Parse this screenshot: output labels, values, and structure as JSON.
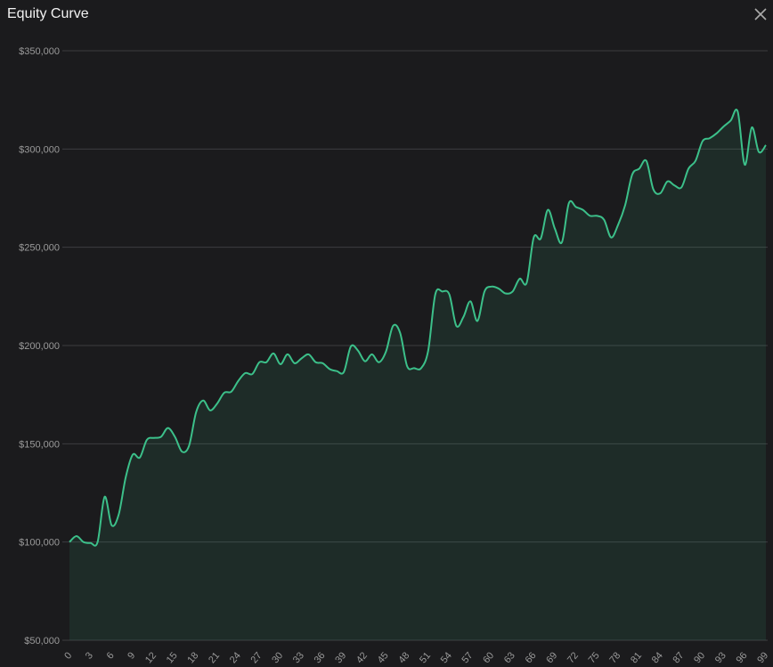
{
  "chart_data": {
    "type": "area",
    "title": "Equity Curve",
    "x": [
      0,
      1,
      2,
      3,
      4,
      5,
      6,
      7,
      8,
      9,
      10,
      11,
      12,
      13,
      14,
      15,
      16,
      17,
      18,
      19,
      20,
      21,
      22,
      23,
      24,
      25,
      26,
      27,
      28,
      29,
      30,
      31,
      32,
      33,
      34,
      35,
      36,
      37,
      38,
      39,
      40,
      41,
      42,
      43,
      44,
      45,
      46,
      47,
      48,
      49,
      50,
      51,
      52,
      53,
      54,
      55,
      56,
      57,
      58,
      59,
      60,
      61,
      62,
      63,
      64,
      65,
      66,
      67,
      68,
      69,
      70,
      71,
      72,
      73,
      74,
      75,
      76,
      77,
      78,
      79,
      80,
      81,
      82,
      83,
      84,
      85,
      86,
      87,
      88,
      89,
      90,
      91,
      92,
      93,
      94,
      95,
      96,
      97,
      98,
      99
    ],
    "values": [
      100000,
      103000,
      100000,
      99500,
      100000,
      123000,
      108500,
      114000,
      133000,
      144500,
      143000,
      152000,
      153000,
      153500,
      158000,
      153500,
      146000,
      149000,
      166000,
      172000,
      167000,
      170500,
      176000,
      176500,
      182000,
      186000,
      185500,
      191500,
      191500,
      196000,
      190500,
      195500,
      191000,
      193500,
      195500,
      191500,
      191000,
      188000,
      187000,
      186500,
      199500,
      197500,
      192000,
      195500,
      191500,
      197000,
      210000,
      206500,
      189500,
      188500,
      188500,
      197500,
      226000,
      227500,
      226000,
      210000,
      214500,
      222500,
      212500,
      227500,
      230000,
      229000,
      226500,
      227500,
      234000,
      232000,
      255000,
      254500,
      269000,
      259500,
      252500,
      272500,
      270500,
      269000,
      266000,
      266000,
      264000,
      255000,
      261500,
      271500,
      287000,
      290000,
      294000,
      279500,
      277500,
      283500,
      281500,
      280500,
      290000,
      294000,
      304000,
      305500,
      308000,
      311500,
      314500,
      319000,
      292000,
      311000,
      298500,
      302000
    ],
    "color": "#3cc08a",
    "xlim": [
      0,
      99
    ],
    "xticks": [
      0,
      3,
      6,
      9,
      12,
      15,
      18,
      21,
      24,
      27,
      30,
      33,
      36,
      39,
      42,
      45,
      48,
      51,
      54,
      57,
      60,
      63,
      66,
      69,
      72,
      75,
      78,
      81,
      84,
      87,
      90,
      93,
      96,
      99
    ],
    "ylim": [
      50000,
      350000
    ],
    "yticks": [
      {
        "value": 50000,
        "label": "$50,000"
      },
      {
        "value": 100000,
        "label": "$100,000"
      },
      {
        "value": 150000,
        "label": "$150,000"
      },
      {
        "value": 200000,
        "label": "$200,000"
      },
      {
        "value": 250000,
        "label": "$250,000"
      },
      {
        "value": 300000,
        "label": "$300,000"
      },
      {
        "value": 350000,
        "label": "$350,000"
      }
    ],
    "grid": true
  }
}
